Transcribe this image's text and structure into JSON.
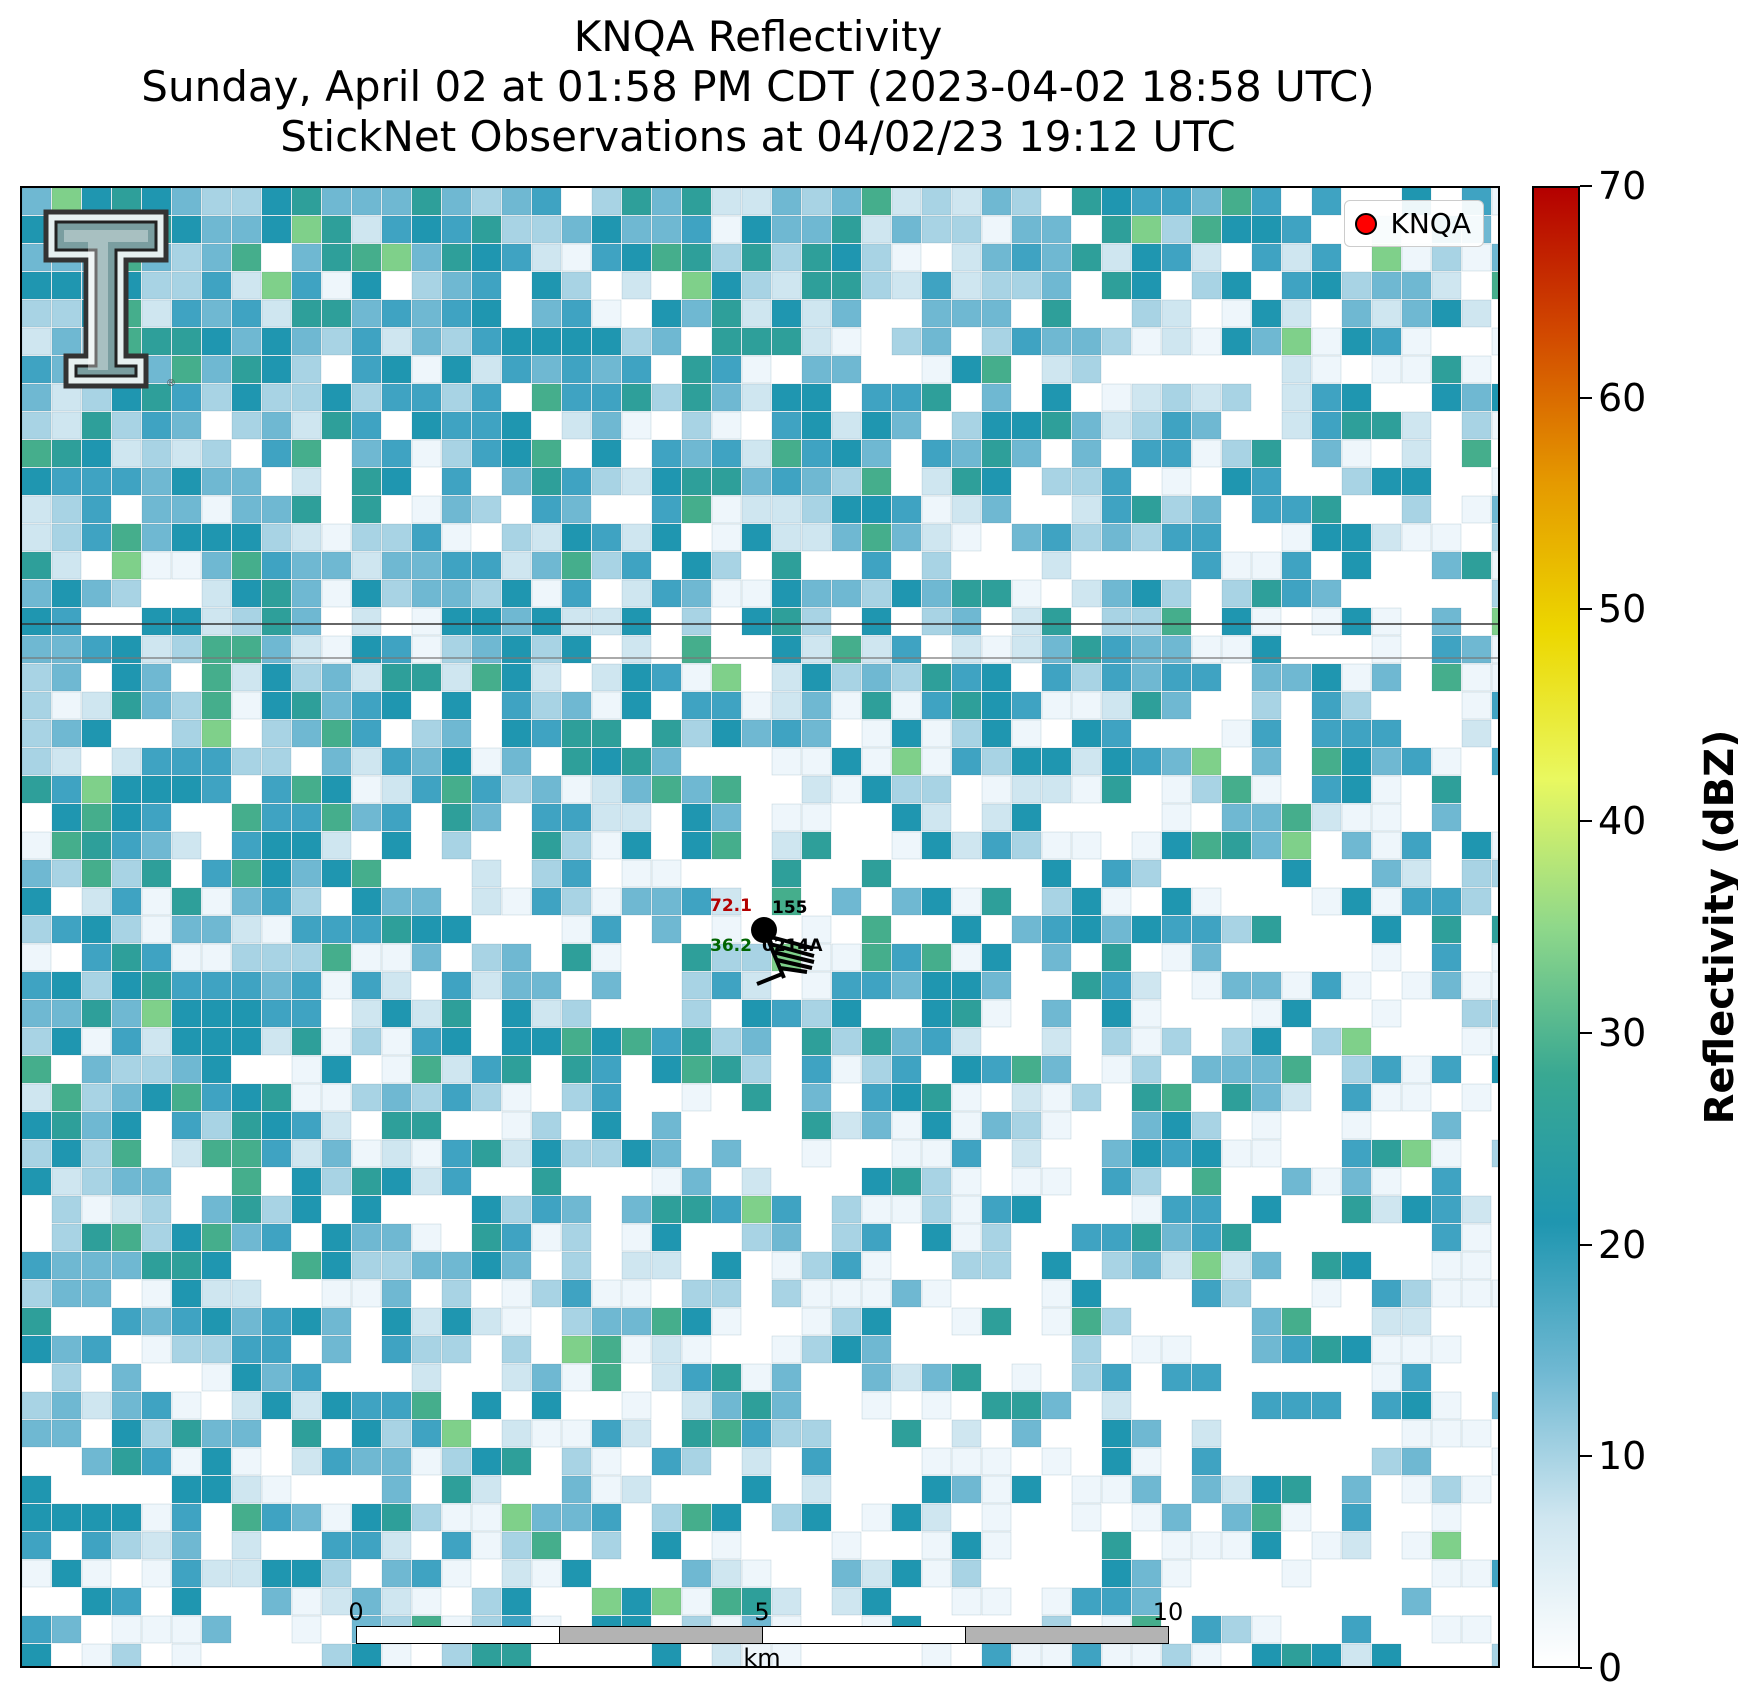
{
  "title": {
    "line1": "KNQA Reflectivity",
    "line2": "Sunday, April 02 at 01:58 PM CDT (2023-04-02 18:58 UTC)",
    "line3": "StickNet Observations at 04/02/23 19:12 UTC"
  },
  "legend": {
    "label": "KNQA",
    "marker_color": "#ff0000"
  },
  "station": {
    "temperature": "72.1",
    "pressure": "155",
    "dewpoint": "36.2",
    "id": "0214A",
    "temperature_color": "#b30000",
    "dewpoint_color": "#006400"
  },
  "scale_bar": {
    "ticks": [
      "0",
      "5",
      "10"
    ],
    "unit": "km"
  },
  "colorbar": {
    "label": "Reflectivity (dBZ)",
    "min": 0,
    "max": 70,
    "ticks": [
      "0",
      "10",
      "20",
      "30",
      "40",
      "50",
      "60",
      "70"
    ],
    "colors": [
      "#ffffff",
      "#cfe6f0",
      "#6fb8d2",
      "#1f96b0",
      "#39a892",
      "#8fd88a",
      "#e9f860",
      "#ecd700",
      "#e59a00",
      "#d24a00",
      "#b40000"
    ]
  }
}
